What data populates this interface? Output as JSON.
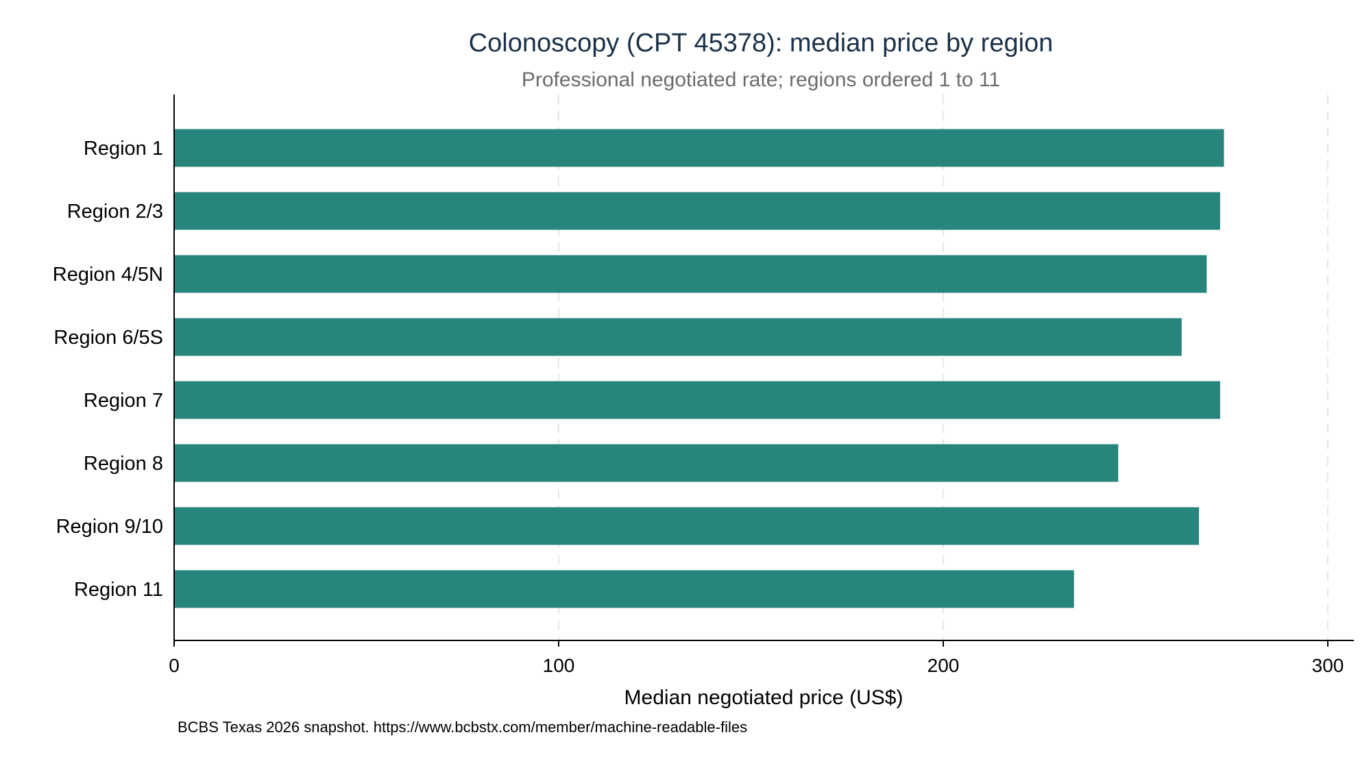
{
  "chart_data": {
    "type": "bar",
    "orientation": "horizontal",
    "title": "Colonoscopy (CPT 45378): median price by region",
    "subtitle": "Professional negotiated rate; regions ordered 1 to 11",
    "xlabel": "Median negotiated price (US$)",
    "ylabel": "",
    "note": "BCBS Texas 2026 snapshot. https://www.bcbstx.com/member/machine-readable-files",
    "categories": [
      "Region 1",
      "Region 2/3",
      "Region 4/5N",
      "Region 6/5S",
      "Region 7",
      "Region 8",
      "Region 9/10",
      "Region 11"
    ],
    "values": [
      273,
      272,
      268.5,
      262,
      272,
      245.5,
      266.5,
      234
    ],
    "xlim": [
      0,
      307
    ],
    "xticks": [
      0,
      100,
      200,
      300
    ],
    "xtick_labels": [
      "0",
      "100",
      "200",
      "300"
    ],
    "grid": "vertical dashed",
    "bar_color": "#27857c",
    "text_color": "#1b3148"
  }
}
